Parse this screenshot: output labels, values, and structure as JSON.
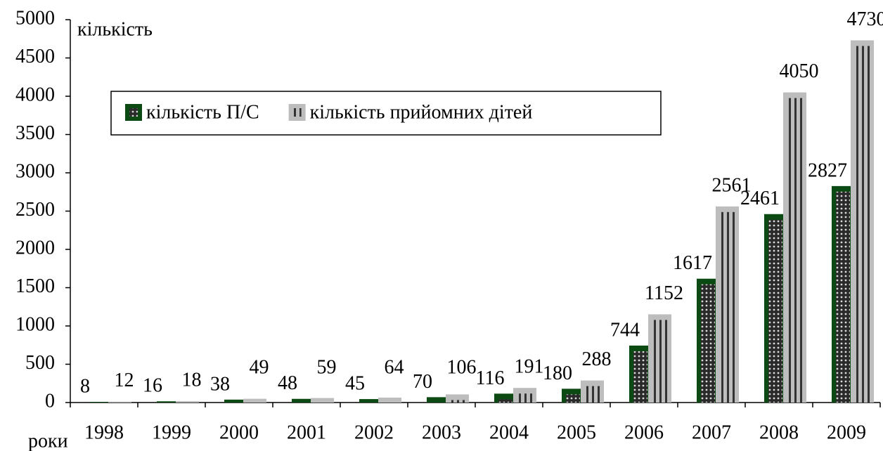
{
  "chart_data": {
    "type": "bar",
    "y_label": "кількість",
    "x_label": "роки",
    "categories": [
      "1998",
      "1999",
      "2000",
      "2001",
      "2002",
      "2003",
      "2004",
      "2005",
      "2006",
      "2007",
      "2008",
      "2009"
    ],
    "series": [
      {
        "name": "кількість П/С",
        "color": "#0b4a12",
        "values": [
          8,
          16,
          38,
          48,
          45,
          70,
          116,
          180,
          744,
          1617,
          2461,
          2827
        ]
      },
      {
        "name": "кількість прийомних дітей",
        "color": "#bdbdbd",
        "values": [
          12,
          18,
          49,
          59,
          64,
          106,
          191,
          288,
          1152,
          2561,
          4050,
          4730
        ]
      }
    ],
    "ylim": [
      0,
      5000
    ],
    "yticks": [
      0,
      500,
      1000,
      1500,
      2000,
      2500,
      3000,
      3500,
      4000,
      4500,
      5000
    ],
    "legend": "upper left"
  }
}
